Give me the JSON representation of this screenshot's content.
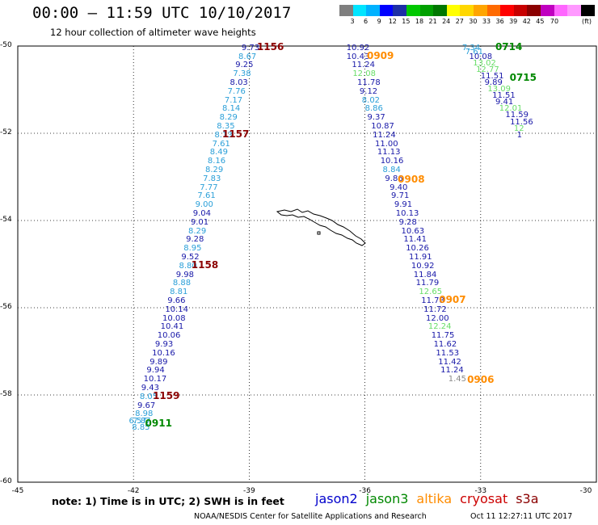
{
  "title": "00:00 — 11:59 UTC 10/10/2017",
  "subtitle": "12 hour collection of altimeter wave heights",
  "scale": {
    "unit": "(ft)",
    "colors": [
      "#7f7f7f",
      "#00e5ff",
      "#00b2ff",
      "#0000ff",
      "#1d2fa6",
      "#00c800",
      "#00a000",
      "#007800",
      "#ffff00",
      "#ffd700",
      "#ffa500",
      "#ff6a00",
      "#ff0000",
      "#c80000",
      "#8b0000",
      "#c000c0",
      "#ff66ff",
      "#ff99ff",
      "#000000"
    ],
    "labels": [
      "3",
      "6",
      "9",
      "12",
      "15",
      "18",
      "21",
      "24",
      "27",
      "30",
      "33",
      "36",
      "39",
      "42",
      "45",
      "70"
    ]
  },
  "axes": {
    "lon_ticks": [
      "-45",
      "-42",
      "-39",
      "-36",
      "-33",
      "-30"
    ],
    "lat_ticks": [
      "-50",
      "-52",
      "-54",
      "-56",
      "-58",
      "-60"
    ]
  },
  "satellite_colors": {
    "jason2": "#0000cc",
    "jason3": "#008800",
    "altika": "#ff8c00",
    "cryosat": "#cc0000",
    "s3a": "#8b0000"
  },
  "observation_colors": {
    "blue": "#1818a8",
    "cyan": "#2a9fd8",
    "lightgreen": "#66dd66",
    "gray": "#888888"
  },
  "tracks": {
    "s3a_track": [
      [
        "9.73",
        "blue",
        -39.2,
        -50.05
      ],
      [
        "8.67",
        "cyan",
        -39.28,
        -50.25
      ],
      [
        "9.25",
        "blue",
        -39.36,
        -50.45
      ],
      [
        "7.38",
        "cyan",
        -39.42,
        -50.65
      ],
      [
        "8.03",
        "blue",
        -39.5,
        -50.85
      ],
      [
        "7.76",
        "cyan",
        -39.56,
        -51.05
      ],
      [
        "7.17",
        "cyan",
        -39.64,
        -51.25
      ],
      [
        "8.14",
        "cyan",
        -39.7,
        -51.45
      ],
      [
        "8.29",
        "cyan",
        -39.77,
        -51.65
      ],
      [
        "8.35",
        "cyan",
        -39.84,
        -51.85
      ],
      [
        "8.13",
        "cyan",
        -39.9,
        -52.05
      ],
      [
        "7.61",
        "cyan",
        -39.96,
        -52.25
      ],
      [
        "8.49",
        "cyan",
        -40.02,
        -52.45
      ],
      [
        "8.16",
        "cyan",
        -40.08,
        -52.65
      ],
      [
        "8.29",
        "cyan",
        -40.14,
        -52.85
      ],
      [
        "7.83",
        "cyan",
        -40.2,
        -53.05
      ],
      [
        "7.77",
        "cyan",
        -40.28,
        -53.25
      ],
      [
        "7.61",
        "cyan",
        -40.34,
        -53.45
      ],
      [
        "9.00",
        "cyan",
        -40.4,
        -53.65
      ],
      [
        "9.04",
        "blue",
        -40.46,
        -53.85
      ],
      [
        "9.01",
        "blue",
        -40.52,
        -54.05
      ],
      [
        "8.29",
        "cyan",
        -40.58,
        -54.25
      ],
      [
        "9.28",
        "blue",
        -40.64,
        -54.45
      ],
      [
        "8.95",
        "cyan",
        -40.7,
        -54.65
      ],
      [
        "9.52",
        "blue",
        -40.76,
        -54.85
      ],
      [
        "8.80",
        "cyan",
        -40.82,
        -55.05
      ],
      [
        "9.98",
        "blue",
        -40.9,
        -55.25
      ],
      [
        "8.88",
        "cyan",
        -40.98,
        -55.45
      ],
      [
        "8.81",
        "cyan",
        -41.06,
        -55.65
      ],
      [
        "9.66",
        "blue",
        -41.12,
        -55.85
      ],
      [
        "10.14",
        "blue",
        -41.18,
        -56.05
      ],
      [
        "10.08",
        "blue",
        -41.25,
        -56.25
      ],
      [
        "10.41",
        "blue",
        -41.3,
        -56.45
      ],
      [
        "10.06",
        "blue",
        -41.38,
        -56.65
      ],
      [
        "9.93",
        "blue",
        -41.44,
        -56.85
      ],
      [
        "10.16",
        "blue",
        -41.52,
        -57.05
      ],
      [
        "9.89",
        "blue",
        -41.58,
        -57.25
      ],
      [
        "9.94",
        "blue",
        -41.66,
        -57.45
      ],
      [
        "10.17",
        "blue",
        -41.74,
        -57.65
      ],
      [
        "9.43",
        "blue",
        -41.8,
        -57.85
      ],
      [
        "8.05",
        "cyan",
        -41.84,
        -58.05
      ],
      [
        "9.67",
        "blue",
        -41.9,
        -58.25
      ],
      [
        "8.98",
        "cyan",
        -41.96,
        -58.45
      ],
      [
        "7.87",
        "cyan",
        -42.02,
        -58.62
      ],
      [
        "6.57",
        "cyan",
        -42.12,
        -58.62
      ],
      [
        "8.85",
        "cyan",
        -42.04,
        -58.75
      ]
    ],
    "altika_track": [
      [
        "10.92",
        "blue",
        -36.48,
        -50.05
      ],
      [
        "10.43",
        "blue",
        -36.48,
        -50.25
      ],
      [
        "11.24",
        "blue",
        -36.34,
        -50.45
      ],
      [
        "12.08",
        "lightgreen",
        -36.32,
        -50.65
      ],
      [
        "11.78",
        "blue",
        -36.2,
        -50.85
      ],
      [
        "9.12",
        "blue",
        -36.14,
        -51.05
      ],
      [
        "8.02",
        "cyan",
        -36.08,
        -51.25
      ],
      [
        "8.86",
        "cyan",
        -36.0,
        -51.45
      ],
      [
        "9.37",
        "blue",
        -35.94,
        -51.65
      ],
      [
        "10.87",
        "blue",
        -35.84,
        -51.85
      ],
      [
        "11.24",
        "blue",
        -35.8,
        -52.05
      ],
      [
        "11.00",
        "blue",
        -35.74,
        -52.25
      ],
      [
        "11.13",
        "blue",
        -35.68,
        -52.45
      ],
      [
        "10.16",
        "blue",
        -35.6,
        -52.65
      ],
      [
        "8.84",
        "cyan",
        -35.54,
        -52.85
      ],
      [
        "9.86",
        "blue",
        -35.48,
        -53.05
      ],
      [
        "9.40",
        "blue",
        -35.36,
        -53.25
      ],
      [
        "9.71",
        "blue",
        -35.32,
        -53.45
      ],
      [
        "9.91",
        "blue",
        -35.24,
        -53.65
      ],
      [
        "10.13",
        "blue",
        -35.2,
        -53.85
      ],
      [
        "9.28",
        "blue",
        -35.12,
        -54.05
      ],
      [
        "10.63",
        "blue",
        -35.06,
        -54.25
      ],
      [
        "11.41",
        "blue",
        -35.0,
        -54.45
      ],
      [
        "10.26",
        "blue",
        -34.94,
        -54.65
      ],
      [
        "11.91",
        "blue",
        -34.86,
        -54.85
      ],
      [
        "10.92",
        "blue",
        -34.8,
        -55.05
      ],
      [
        "11.84",
        "blue",
        -34.74,
        -55.25
      ],
      [
        "11.79",
        "blue",
        -34.68,
        -55.45
      ],
      [
        "12.65",
        "lightgreen",
        -34.6,
        -55.65
      ],
      [
        "11.78",
        "blue",
        -34.54,
        -55.85
      ],
      [
        "11.72",
        "blue",
        -34.48,
        -56.05
      ],
      [
        "12.00",
        "blue",
        -34.42,
        -56.25
      ],
      [
        "12.24",
        "lightgreen",
        -34.36,
        -56.45
      ],
      [
        "11.75",
        "blue",
        -34.28,
        -56.65
      ],
      [
        "11.62",
        "blue",
        -34.22,
        -56.85
      ],
      [
        "11.53",
        "blue",
        -34.16,
        -57.05
      ],
      [
        "11.42",
        "blue",
        -34.1,
        -57.25
      ],
      [
        "11.24",
        "blue",
        -34.04,
        -57.45
      ],
      [
        "1.45",
        "gray",
        -33.84,
        -57.65
      ]
    ],
    "jason3_track": [
      [
        "7.34",
        "cyan",
        -33.48,
        -50.05
      ],
      [
        "7.61",
        "cyan",
        -33.4,
        -50.15
      ],
      [
        "10.08",
        "blue",
        -33.3,
        -50.25
      ],
      [
        "13.02",
        "lightgreen",
        -33.2,
        -50.4
      ],
      [
        "12.77",
        "lightgreen",
        -33.12,
        -50.55
      ],
      [
        "11.51",
        "blue",
        -33.0,
        -50.7
      ],
      [
        "9.89",
        "blue",
        -32.9,
        -50.85
      ],
      [
        "13.09",
        "lightgreen",
        -32.82,
        -51.0
      ],
      [
        "11.51",
        "blue",
        -32.7,
        -51.15
      ],
      [
        "9.41",
        "blue",
        -32.62,
        -51.3
      ],
      [
        "12.01",
        "lightgreen",
        -32.52,
        -51.45
      ],
      [
        "11.59",
        "blue",
        -32.36,
        -51.6
      ],
      [
        "11.56",
        "blue",
        -32.24,
        -51.75
      ],
      [
        "12",
        "lightgreen",
        -32.14,
        -51.9
      ],
      [
        "1",
        "blue",
        -32.06,
        -52.05
      ]
    ]
  },
  "time_labels": [
    [
      "1156",
      "s3a",
      -38.8,
      -50.02
    ],
    [
      "1157",
      "s3a",
      -39.7,
      -52.02
    ],
    [
      "1158",
      "s3a",
      -40.5,
      -55.02
    ],
    [
      "1159",
      "s3a",
      -41.5,
      -58.02
    ],
    [
      "0911",
      "jason3",
      -41.7,
      -58.64
    ],
    [
      "0909",
      "altika",
      -35.95,
      -50.22
    ],
    [
      "0908",
      "altika",
      -35.15,
      -53.05
    ],
    [
      "0907",
      "altika",
      -34.08,
      -55.82
    ],
    [
      "0906",
      "altika",
      -33.35,
      -57.65
    ],
    [
      "0714",
      "jason3",
      -32.62,
      -50.02
    ],
    [
      "0715",
      "jason3",
      -32.25,
      -50.72
    ]
  ],
  "note": "note: 1) Time is in UTC; 2) SWH is in feet",
  "legend": [
    "jason2",
    "jason3",
    "altika",
    "cryosat",
    "s3a"
  ],
  "credit": "NOAA/NESDIS Center for Satellite Applications and Research",
  "stamp": "Oct 11 12:27:11 UTC 2017"
}
